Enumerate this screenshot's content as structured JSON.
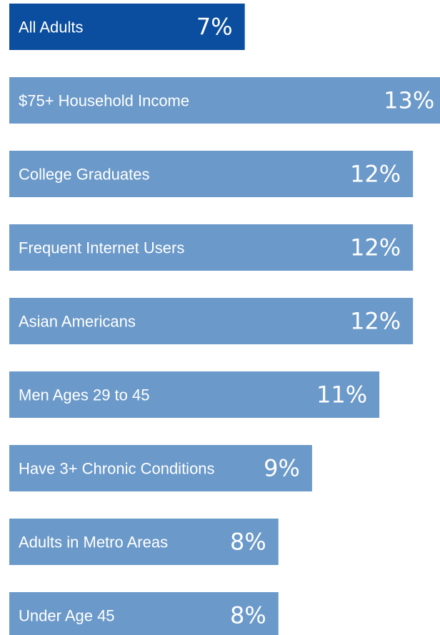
{
  "chart_data": {
    "type": "hbar",
    "categories": [
      "All Adults",
      "$75+ Household Income",
      "College Graduates",
      "Frequent Internet Users",
      "Asian Americans",
      "Men Ages 29 to 45",
      "Have 3+ Chronic Conditions",
      "Adults in Metro Areas",
      "Under Age 45"
    ],
    "values": [
      7,
      13,
      12,
      12,
      12,
      11,
      9,
      8,
      8
    ],
    "value_labels": [
      "7%",
      "13%",
      "12%",
      "12%",
      "12%",
      "11%",
      "9%",
      "8%",
      "8%"
    ],
    "colors": [
      "#0b4d9e",
      "#6b99c9",
      "#6b99c9",
      "#6b99c9",
      "#6b99c9",
      "#6b99c9",
      "#6b99c9",
      "#6b99c9",
      "#6b99c9"
    ]
  }
}
